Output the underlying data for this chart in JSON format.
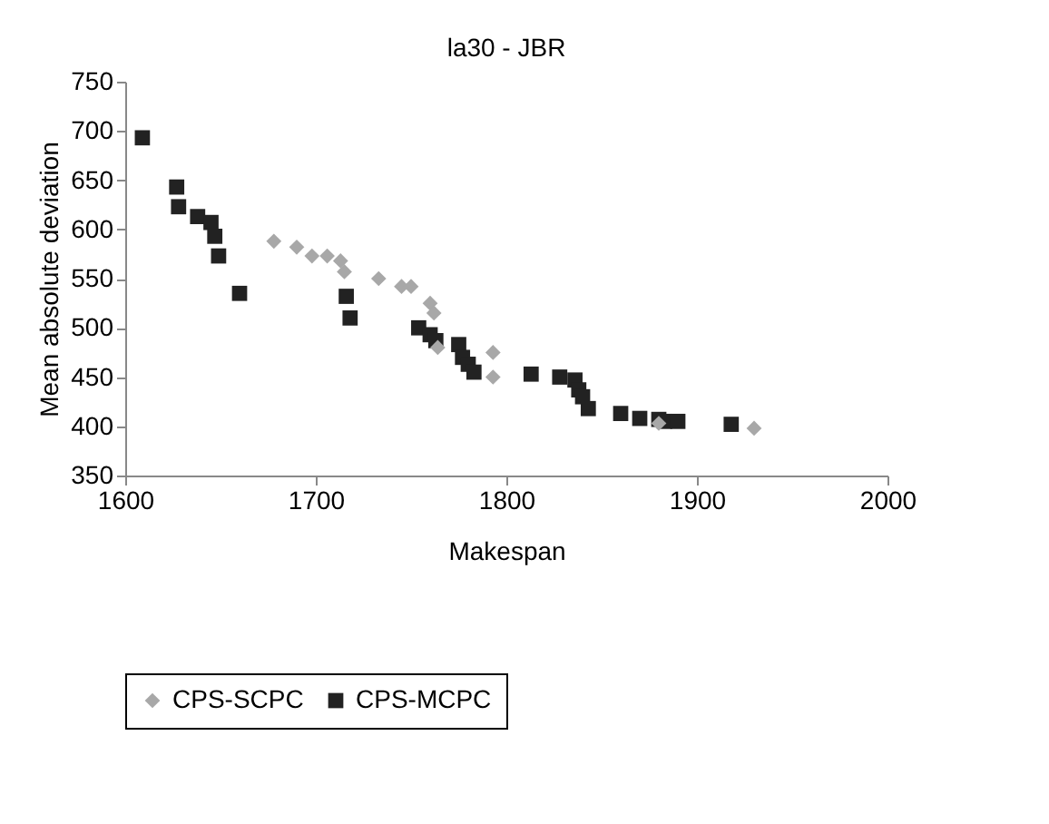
{
  "chart_data": {
    "type": "scatter",
    "title": "la30 - JBR",
    "xlabel": "Makespan",
    "ylabel": "Mean absolute deviation",
    "xlim": [
      1600,
      2000
    ],
    "xticks": [
      1600,
      1700,
      1800,
      1900,
      2000
    ],
    "ylim": [
      350,
      750
    ],
    "yticks": [
      350,
      400,
      450,
      500,
      550,
      600,
      650,
      700,
      750
    ],
    "grid": false,
    "legend": "bottom",
    "series": [
      {
        "name": "CPS-SCPC",
        "color": "#a8a8a8",
        "marker": "diamond",
        "x": [
          1678,
          1690,
          1698,
          1706,
          1713,
          1715,
          1733,
          1745,
          1750,
          1760,
          1762,
          1764,
          1793,
          1793,
          1880,
          1930
        ],
        "values": [
          588,
          582,
          573,
          573,
          568,
          557,
          550,
          542,
          542,
          525,
          515,
          480,
          475,
          450,
          403,
          398
        ]
      },
      {
        "name": "CPS-MCPC",
        "color": "#222222",
        "marker": "square",
        "x": [
          1609,
          1627,
          1628,
          1638,
          1645,
          1647,
          1649,
          1660,
          1716,
          1718,
          1754,
          1760,
          1763,
          1775,
          1777,
          1780,
          1783,
          1813,
          1828,
          1836,
          1838,
          1840,
          1843,
          1860,
          1870,
          1880,
          1883,
          1890,
          1918
        ],
        "values": [
          693,
          643,
          623,
          613,
          607,
          593,
          573,
          535,
          532,
          510,
          500,
          493,
          487,
          483,
          470,
          463,
          455,
          453,
          450,
          447,
          437,
          430,
          418,
          413,
          408,
          407,
          405,
          405,
          402
        ]
      }
    ]
  }
}
